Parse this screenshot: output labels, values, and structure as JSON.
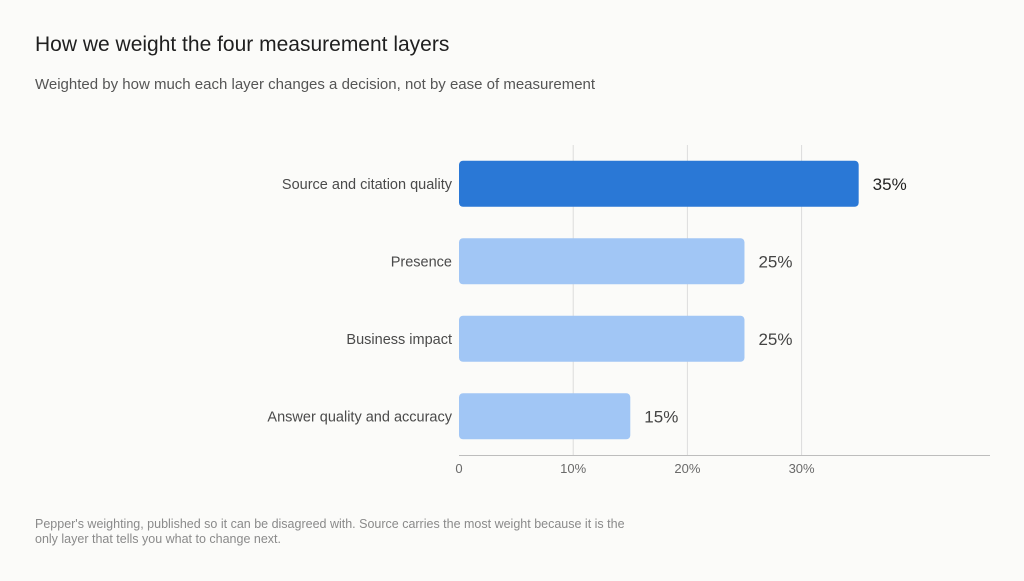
{
  "title": "How we weight the four measurement layers",
  "subtitle": "Weighted by how much each layer changes a decision, not by ease of measurement",
  "footnote": "Pepper's weighting, published so it can be disagreed with. Source carries the most weight because it is the only layer that tells you what to change next.",
  "colors": {
    "highlight": "#2a78d6",
    "default": "#a1c6f5",
    "grid": "#dcdcdc",
    "axis": "#bdbdbd",
    "label": "#4a4a4a",
    "value_highlight": "#1f1f1f",
    "value_default": "#444444"
  },
  "chart_data": {
    "type": "bar",
    "orientation": "horizontal",
    "categories": [
      "Source and citation quality",
      "Presence",
      "Business impact",
      "Answer quality and accuracy"
    ],
    "values": [
      35,
      25,
      25,
      15
    ],
    "value_labels": [
      "35%",
      "25%",
      "25%",
      "15%"
    ],
    "highlight_index": 0,
    "xlim": [
      0,
      46.5
    ],
    "x_ticks": [
      0,
      10,
      20,
      30
    ],
    "x_tick_labels": [
      "0",
      "10%",
      "20%",
      "30%"
    ],
    "grid": true
  }
}
